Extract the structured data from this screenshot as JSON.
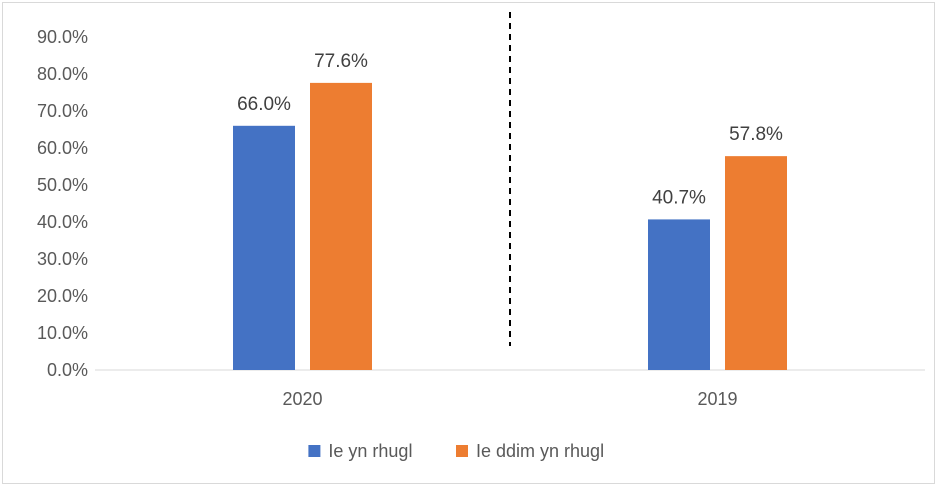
{
  "chart_data": {
    "type": "bar",
    "title": "",
    "xlabel": "",
    "ylabel": "",
    "categories": [
      "2020",
      "2019"
    ],
    "series": [
      {
        "name": "Ie yn rhugl",
        "values": [
          66.0,
          40.7
        ],
        "labels": [
          "66.0%",
          "40.7%"
        ],
        "color": "#4472C4"
      },
      {
        "name": "Ie ddim yn rhugl",
        "values": [
          77.6,
          57.8
        ],
        "labels": [
          "77.6%",
          "57.8%"
        ],
        "color": "#ED7D31"
      }
    ],
    "ylim": [
      0,
      90
    ],
    "yticks": [
      "0.0%",
      "10.0%",
      "20.0%",
      "30.0%",
      "40.0%",
      "50.0%",
      "60.0%",
      "70.0%",
      "80.0%",
      "90.0%"
    ],
    "grid": false,
    "legend_position": "bottom",
    "annotations": [
      {
        "type": "dashed-divider",
        "between_categories": [
          "2020",
          "2019"
        ]
      }
    ]
  }
}
